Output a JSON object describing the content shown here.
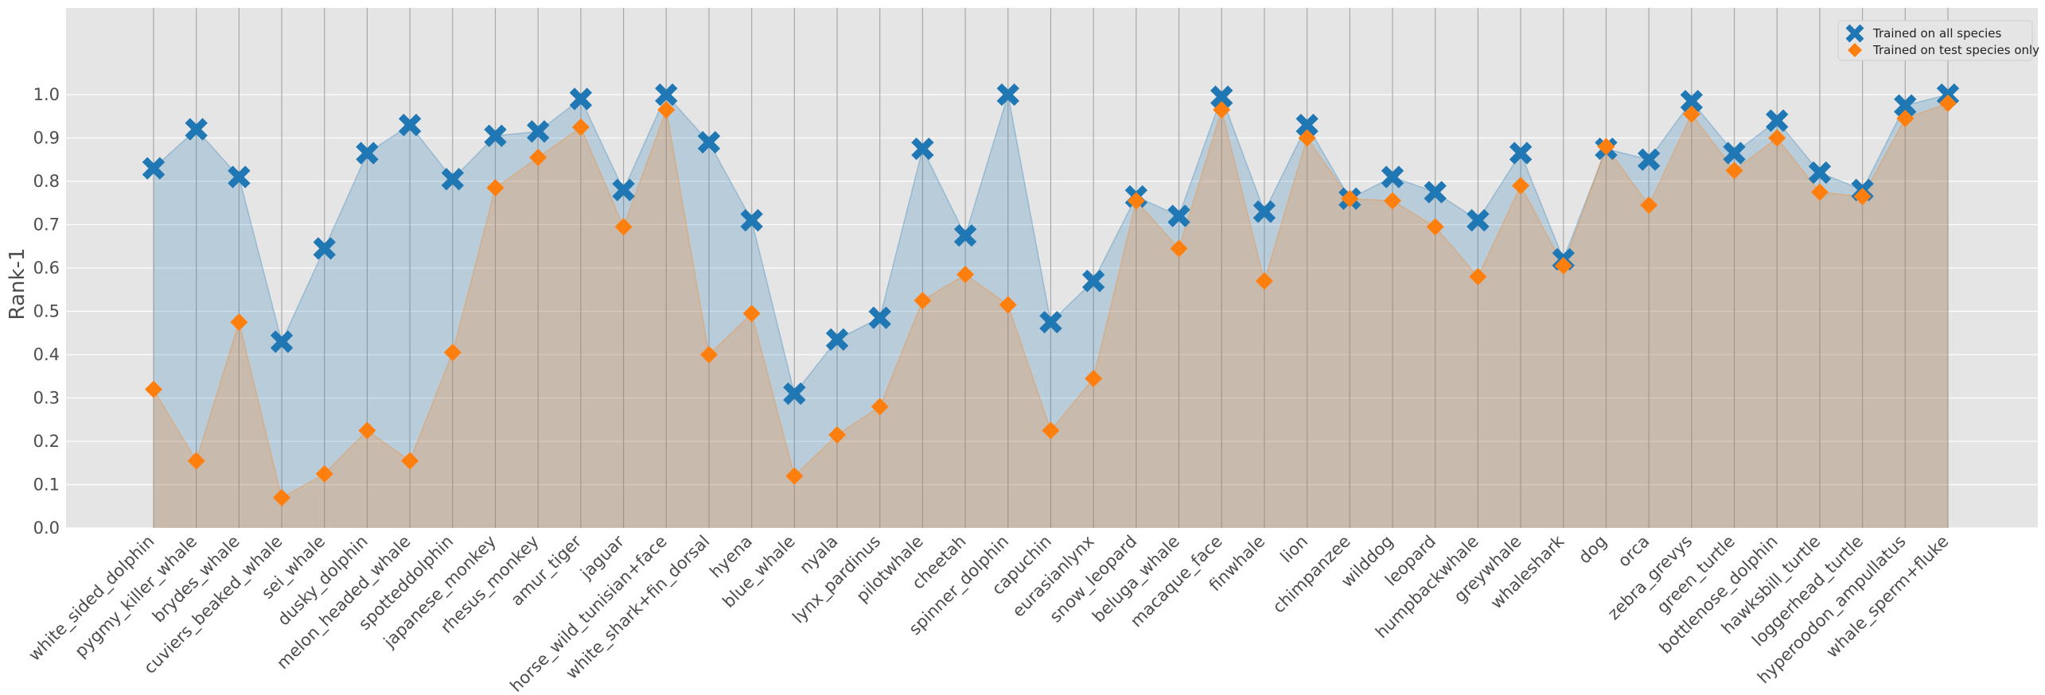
{
  "chart_data": {
    "type": "line",
    "title": "",
    "xlabel": "",
    "ylabel": "Rank-1",
    "ylim": [
      0,
      1.2
    ],
    "yticks": [
      "0.0",
      "0.1",
      "0.2",
      "0.3",
      "0.4",
      "0.5",
      "0.6",
      "0.7",
      "0.8",
      "0.9",
      "1.0"
    ],
    "grid": true,
    "legend_position": "top-right",
    "categories": [
      "white_sided_dolphin",
      "pygmy_killer_whale",
      "brydes_whale",
      "cuviers_beaked_whale",
      "sei_whale",
      "dusky_dolphin",
      "melon_headed_whale",
      "spotteddolphin",
      "japanese_monkey",
      "rhesus_monkey",
      "amur_tiger",
      "jaguar",
      "horse_wild_tunisian+face",
      "white_shark+fin_dorsal",
      "hyena",
      "blue_whale",
      "nyala",
      "lynx_pardinus",
      "pilotwhale",
      "cheetah",
      "spinner_dolphin",
      "capuchin",
      "eurasianlynx",
      "snow_leopard",
      "beluga_whale",
      "macaque_face",
      "finwhale",
      "lion",
      "chimpanzee",
      "wilddog",
      "leopard",
      "humpbackwhale",
      "greywhale",
      "whaleshark",
      "dog",
      "orca",
      "zebra_grevys",
      "green_turtle",
      "bottlenose_dolphin",
      "hawksbill_turtle",
      "loggerhead_turtle",
      "hyperoodon_ampullatus",
      "whale_sperm+fluke"
    ],
    "series": [
      {
        "name": "Trained on all species",
        "color": "#1f77b4",
        "marker": "X",
        "values": [
          0.83,
          0.92,
          0.81,
          0.43,
          0.645,
          0.865,
          0.93,
          0.805,
          0.905,
          0.915,
          0.99,
          0.78,
          1.0,
          0.89,
          0.71,
          0.31,
          0.435,
          0.485,
          0.875,
          0.675,
          1.0,
          0.475,
          0.57,
          0.765,
          0.72,
          0.995,
          0.73,
          0.93,
          0.76,
          0.81,
          0.775,
          0.71,
          0.865,
          0.62,
          0.875,
          0.85,
          0.985,
          0.865,
          0.94,
          0.82,
          0.78,
          0.975,
          1.0
        ]
      },
      {
        "name": "Trained on test species only",
        "color": "#ff7f0e",
        "marker": "D",
        "values": [
          0.32,
          0.155,
          0.475,
          0.07,
          0.125,
          0.225,
          0.155,
          0.405,
          0.785,
          0.855,
          0.925,
          0.695,
          0.965,
          0.4,
          0.495,
          0.12,
          0.215,
          0.28,
          0.525,
          0.585,
          0.515,
          0.225,
          0.345,
          0.755,
          0.645,
          0.965,
          0.57,
          0.9,
          0.76,
          0.755,
          0.695,
          0.58,
          0.79,
          0.605,
          0.88,
          0.745,
          0.955,
          0.825,
          0.9,
          0.775,
          0.765,
          0.945,
          0.98
        ]
      }
    ]
  }
}
